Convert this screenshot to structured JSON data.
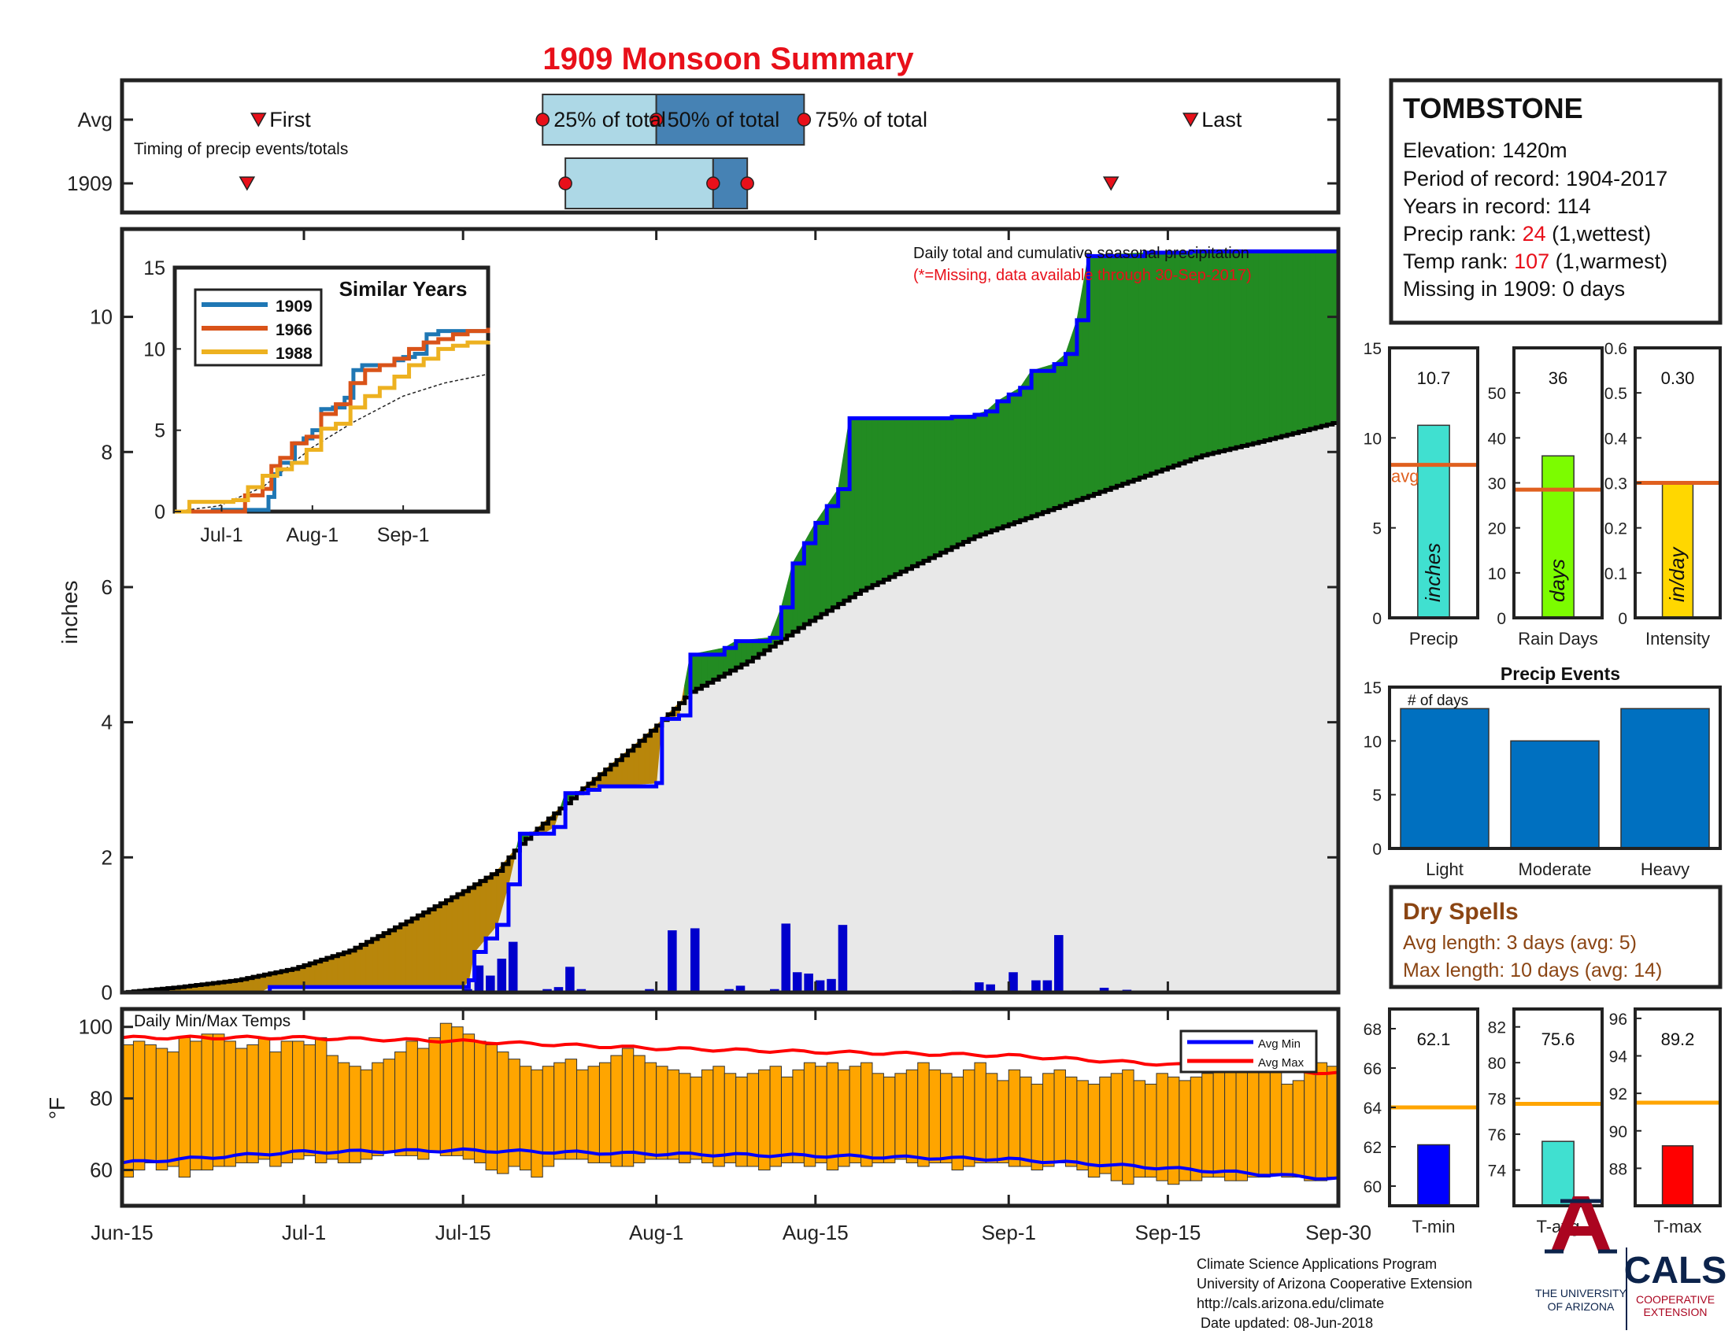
{
  "title": "1909 Monsoon Summary",
  "station": {
    "name": "TOMBSTONE",
    "lines": [
      {
        "label": "Elevation: ",
        "value": "1420m"
      },
      {
        "label": "Period of record: ",
        "value": "1904-2017"
      },
      {
        "label": "Years in record: ",
        "value": "114"
      },
      {
        "label": "Precip rank: ",
        "value": "24",
        "suffix": " (1,wettest)"
      },
      {
        "label": "Temp rank: ",
        "value": "107",
        "suffix": " (1,warmest)"
      },
      {
        "label": "Missing in 1909: ",
        "value": "0 days"
      }
    ]
  },
  "timing": {
    "rows": [
      "Avg",
      "1909"
    ],
    "subtitle": "Timing of precip events/totals",
    "labels": {
      "first": "First",
      "last": "Last",
      "p25": "25% of total",
      "p50": "50% of total",
      "p75": "75% of total"
    },
    "avg": {
      "first": 12,
      "p25": 37,
      "p50": 47,
      "p75": 60,
      "last": 94
    },
    "year": {
      "first": 11,
      "p25": 39,
      "p50": 52,
      "p75": 55,
      "last": 87
    }
  },
  "precip_note": {
    "line1": "Daily total and cumulative seasonal precipitation",
    "line2": "(*=Missing, data available through 30-Sep-2017)"
  },
  "date_ticks": [
    "Jun-15",
    "Jul-1",
    "Jul-15",
    "Aug-1",
    "Aug-15",
    "Sep-1",
    "Sep-15",
    "Sep-30"
  ],
  "date_tick_days": [
    0,
    16,
    30,
    47,
    61,
    78,
    92,
    107
  ],
  "colors": {
    "observed": "#0000ff",
    "average": "#000000",
    "above": "#228b22",
    "below": "#b8860b",
    "fill": "#e8e8e8",
    "bars": "#0000cc",
    "temps": "#ffa500",
    "avg_line": "#e0601f"
  },
  "chart_data": [
    {
      "type": "area",
      "name": "cumulative-precip",
      "ylabel": "inches",
      "ylim": [
        0,
        11.3
      ],
      "yticks": [
        0,
        2,
        4,
        6,
        8,
        10
      ],
      "xlim": [
        0,
        107
      ],
      "x_unit": "days since Jun-15",
      "observed_cumulative": [
        [
          0,
          0
        ],
        [
          12,
          0
        ],
        [
          13,
          0.08
        ],
        [
          30,
          0.08
        ],
        [
          30.5,
          0.18
        ],
        [
          31,
          0.6
        ],
        [
          32,
          0.8
        ],
        [
          33,
          1.0
        ],
        [
          34,
          1.6
        ],
        [
          35,
          2.35
        ],
        [
          37,
          2.35
        ],
        [
          38,
          2.45
        ],
        [
          39,
          2.95
        ],
        [
          40,
          2.95
        ],
        [
          41,
          3.0
        ],
        [
          42,
          3.05
        ],
        [
          47,
          3.1
        ],
        [
          47.5,
          4.05
        ],
        [
          49,
          4.1
        ],
        [
          50,
          5.0
        ],
        [
          53,
          5.1
        ],
        [
          54,
          5.2
        ],
        [
          57,
          5.25
        ],
        [
          58,
          5.7
        ],
        [
          59,
          6.35
        ],
        [
          60,
          6.65
        ],
        [
          61,
          6.95
        ],
        [
          62,
          7.2
        ],
        [
          63,
          7.45
        ],
        [
          64,
          8.5
        ],
        [
          70,
          8.5
        ],
        [
          73,
          8.52
        ],
        [
          75,
          8.55
        ],
        [
          76,
          8.6
        ],
        [
          77,
          8.75
        ],
        [
          78,
          8.85
        ],
        [
          79,
          8.95
        ],
        [
          80,
          9.2
        ],
        [
          82,
          9.3
        ],
        [
          83,
          9.45
        ],
        [
          84,
          9.95
        ],
        [
          85,
          10.9
        ],
        [
          90,
          10.95
        ],
        [
          94,
          10.97
        ],
        [
          107,
          10.97
        ]
      ],
      "average_cumulative": [
        [
          0,
          0
        ],
        [
          5,
          0.08
        ],
        [
          10,
          0.18
        ],
        [
          15,
          0.35
        ],
        [
          20,
          0.62
        ],
        [
          25,
          1.05
        ],
        [
          30,
          1.5
        ],
        [
          33,
          1.8
        ],
        [
          35,
          2.2
        ],
        [
          40,
          2.95
        ],
        [
          45,
          3.65
        ],
        [
          47,
          3.95
        ],
        [
          50,
          4.45
        ],
        [
          55,
          4.9
        ],
        [
          60,
          5.45
        ],
        [
          65,
          5.95
        ],
        [
          70,
          6.35
        ],
        [
          75,
          6.75
        ],
        [
          80,
          7.05
        ],
        [
          85,
          7.35
        ],
        [
          90,
          7.65
        ],
        [
          95,
          7.95
        ],
        [
          100,
          8.15
        ],
        [
          107,
          8.45
        ]
      ],
      "daily_bars": [
        [
          30,
          0.05
        ],
        [
          31,
          0.4
        ],
        [
          32,
          0.25
        ],
        [
          33,
          0.5
        ],
        [
          34,
          0.75
        ],
        [
          37,
          0.05
        ],
        [
          38,
          0.08
        ],
        [
          39,
          0.38
        ],
        [
          40,
          0.05
        ],
        [
          46,
          0.05
        ],
        [
          48,
          0.92
        ],
        [
          50,
          0.95
        ],
        [
          53,
          0.05
        ],
        [
          54,
          0.1
        ],
        [
          57,
          0.05
        ],
        [
          58,
          1.02
        ],
        [
          59,
          0.3
        ],
        [
          60,
          0.28
        ],
        [
          61,
          0.18
        ],
        [
          62,
          0.2
        ],
        [
          63,
          1.0
        ],
        [
          73,
          0.03
        ],
        [
          75,
          0.15
        ],
        [
          76,
          0.12
        ],
        [
          78,
          0.3
        ],
        [
          80,
          0.18
        ],
        [
          81,
          0.18
        ],
        [
          82,
          0.85
        ],
        [
          86,
          0.07
        ],
        [
          88,
          0.04
        ]
      ]
    },
    {
      "type": "line",
      "name": "similar-years",
      "title": "Similar Years",
      "ylim": [
        0,
        15
      ],
      "yticks": [
        0,
        5,
        10,
        15
      ],
      "xticks": [
        {
          "label": "Jul-1",
          "x": 16
        },
        {
          "label": "Aug-1",
          "x": 47
        },
        {
          "label": "Sep-1",
          "x": 78
        }
      ],
      "xlim": [
        0,
        107
      ],
      "series": [
        {
          "name": "1909",
          "color": "#1f77b4",
          "values": [
            [
              0,
              0
            ],
            [
              12,
              0
            ],
            [
              13,
              0.1
            ],
            [
              30,
              0.1
            ],
            [
              32,
              0.9
            ],
            [
              34,
              2.3
            ],
            [
              36,
              3.0
            ],
            [
              39,
              3.0
            ],
            [
              41,
              4.2
            ],
            [
              44,
              4.5
            ],
            [
              47,
              5.0
            ],
            [
              50,
              6.3
            ],
            [
              54,
              6.4
            ],
            [
              58,
              7.0
            ],
            [
              61,
              8.7
            ],
            [
              64,
              9.0
            ],
            [
              70,
              9.0
            ],
            [
              75,
              9.3
            ],
            [
              78,
              9.5
            ],
            [
              82,
              9.7
            ],
            [
              86,
              10.9
            ],
            [
              90,
              11.1
            ],
            [
              107,
              11.2
            ]
          ]
        },
        {
          "name": "1966",
          "color": "#d95319",
          "values": [
            [
              0,
              0
            ],
            [
              22,
              0
            ],
            [
              24,
              1.0
            ],
            [
              30,
              1.4
            ],
            [
              33,
              2.8
            ],
            [
              36,
              3.3
            ],
            [
              40,
              4.2
            ],
            [
              45,
              4.6
            ],
            [
              50,
              6.0
            ],
            [
              55,
              6.6
            ],
            [
              60,
              7.9
            ],
            [
              65,
              8.7
            ],
            [
              70,
              9.0
            ],
            [
              75,
              9.4
            ],
            [
              80,
              10.0
            ],
            [
              85,
              10.4
            ],
            [
              90,
              10.6
            ],
            [
              95,
              10.9
            ],
            [
              100,
              11.1
            ],
            [
              107,
              11.3
            ]
          ]
        },
        {
          "name": "1988",
          "color": "#edb120",
          "values": [
            [
              0,
              0
            ],
            [
              5,
              0.6
            ],
            [
              10,
              0.6
            ],
            [
              20,
              0.7
            ],
            [
              25,
              1.5
            ],
            [
              30,
              2.2
            ],
            [
              35,
              2.6
            ],
            [
              40,
              3.0
            ],
            [
              45,
              3.8
            ],
            [
              50,
              5.1
            ],
            [
              55,
              5.4
            ],
            [
              60,
              6.4
            ],
            [
              65,
              7.1
            ],
            [
              70,
              7.6
            ],
            [
              75,
              8.3
            ],
            [
              80,
              9.0
            ],
            [
              85,
              9.4
            ],
            [
              90,
              10.0
            ],
            [
              95,
              10.2
            ],
            [
              100,
              10.4
            ],
            [
              107,
              10.5
            ]
          ]
        }
      ],
      "average_line": [
        [
          0,
          0
        ],
        [
          15,
          0.35
        ],
        [
          30,
          1.5
        ],
        [
          47,
          3.95
        ],
        [
          61,
          5.5
        ],
        [
          78,
          7.1
        ],
        [
          92,
          7.9
        ],
        [
          107,
          8.45
        ]
      ]
    },
    {
      "type": "bar",
      "name": "daily-temps",
      "title": "Daily Min/Max Temps",
      "ylabel": "°F",
      "ylim": [
        50,
        105
      ],
      "yticks": [
        60,
        80,
        100
      ],
      "legend": [
        "Avg Min",
        "Avg Max"
      ],
      "tmin": [
        58,
        60,
        62,
        60,
        61,
        58,
        60,
        60,
        61,
        61,
        62,
        62,
        63,
        61,
        62,
        63,
        64,
        62,
        63,
        62,
        62,
        63,
        64,
        65,
        64,
        64,
        63,
        65,
        64,
        64,
        63,
        62,
        60,
        59,
        61,
        60,
        58,
        61,
        63,
        63,
        63,
        62,
        62,
        61,
        61,
        62,
        63,
        63,
        63,
        62,
        63,
        62,
        61,
        62,
        61,
        61,
        60,
        61,
        62,
        62,
        61,
        62,
        60,
        61,
        62,
        61,
        62,
        62,
        63,
        62,
        61,
        62,
        62,
        60,
        61,
        62,
        62,
        62,
        61,
        61,
        60,
        61,
        62,
        61,
        60,
        58,
        59,
        57,
        56,
        58,
        58,
        57,
        56,
        57,
        57,
        58,
        58,
        57,
        57,
        58,
        58,
        59,
        58,
        58,
        57,
        57,
        58
      ],
      "tmax": [
        95,
        96,
        95,
        94,
        93,
        97,
        96,
        98,
        98,
        96,
        94,
        95,
        97,
        93,
        96,
        96,
        95,
        97,
        92,
        90,
        89,
        88,
        90,
        91,
        93,
        96,
        94,
        97,
        101,
        100,
        98,
        96,
        95,
        93,
        91,
        89,
        88,
        89,
        90,
        91,
        88,
        89,
        90,
        92,
        94,
        92,
        90,
        89,
        88,
        87,
        86,
        88,
        89,
        87,
        86,
        87,
        88,
        89,
        86,
        88,
        90,
        89,
        90,
        88,
        89,
        90,
        87,
        86,
        87,
        88,
        90,
        88,
        87,
        86,
        88,
        90,
        87,
        85,
        88,
        86,
        84,
        87,
        88,
        86,
        85,
        84,
        86,
        87,
        88,
        85,
        84,
        87,
        86,
        85,
        86,
        87,
        88,
        90,
        89,
        90,
        88,
        89,
        84,
        85,
        88,
        90,
        89
      ],
      "avg_min": [
        [
          0,
          62
        ],
        [
          15,
          65
        ],
        [
          30,
          65.5
        ],
        [
          47,
          64.5
        ],
        [
          61,
          64
        ],
        [
          78,
          63
        ],
        [
          92,
          60.5
        ],
        [
          107,
          57.5
        ]
      ],
      "avg_max": [
        [
          0,
          97
        ],
        [
          15,
          97
        ],
        [
          30,
          96
        ],
        [
          47,
          94
        ],
        [
          61,
          93
        ],
        [
          78,
          92
        ],
        [
          92,
          89.5
        ],
        [
          107,
          87
        ]
      ]
    },
    {
      "type": "bar",
      "name": "summary-bars",
      "panels": [
        {
          "name": "Precip",
          "value": 10.7,
          "value_label": "10.7",
          "avg": 8.5,
          "unit": "inches",
          "ylim": [
            0,
            15
          ],
          "yticks": [
            0,
            5,
            10,
            15
          ],
          "color": "#40e0d0",
          "avg_label": "avg"
        },
        {
          "name": "Rain Days",
          "value": 36,
          "value_label": "36",
          "avg": 28.5,
          "unit": "days",
          "ylim": [
            0,
            60
          ],
          "yticks": [
            0,
            10,
            20,
            30,
            40,
            50
          ],
          "color": "#7cfc00"
        },
        {
          "name": "Intensity",
          "value": 0.3,
          "value_label": "0.30",
          "avg": 0.3,
          "unit": "in/day",
          "ylim": [
            0,
            0.6
          ],
          "yticks": [
            0,
            0.1,
            0.2,
            0.3,
            0.4,
            0.5,
            0.6
          ],
          "color": "#ffd700"
        }
      ]
    },
    {
      "type": "bar",
      "name": "precip-events",
      "title": "Precip Events",
      "ylabel": "# of days",
      "categories": [
        "Light",
        "Moderate",
        "Heavy"
      ],
      "values": [
        13,
        10,
        13
      ],
      "ylim": [
        0,
        15
      ],
      "yticks": [
        0,
        5,
        10,
        15
      ],
      "color": "#0070c0"
    },
    {
      "type": "bar",
      "name": "temp-summary",
      "panels": [
        {
          "name": "T-min",
          "value": 62.1,
          "value_label": "62.1",
          "avg": 64,
          "ylim": [
            59,
            69
          ],
          "yticks": [
            60,
            62,
            64,
            66,
            68
          ],
          "color": "#0000ff"
        },
        {
          "name": "T-avg",
          "value": 75.6,
          "value_label": "75.6",
          "avg": 77.7,
          "ylim": [
            72,
            83
          ],
          "yticks": [
            74,
            76,
            78,
            80,
            82
          ],
          "color": "#40e0d0"
        },
        {
          "name": "T-max",
          "value": 89.2,
          "value_label": "89.2",
          "avg": 91.5,
          "ylim": [
            86,
            96.5
          ],
          "yticks": [
            88,
            90,
            92,
            94,
            96
          ],
          "color": "#ff0000"
        }
      ]
    }
  ],
  "dry_spells": {
    "title": "Dry Spells",
    "avg_length": "Avg length: 3 days (avg: 5)",
    "max_length": "Max length: 10 days (avg: 14)"
  },
  "footer": [
    "Climate Science Applications Program",
    "University of Arizona Cooperative Extension",
    "http://cals.arizona.edu/climate",
    "Date updated: 08-Jun-2018"
  ],
  "logos": {
    "ua_lines": [
      "THE UNIVERSITY",
      "OF ARIZONA"
    ],
    "cals": "CALS",
    "cals_sub": [
      "COOPERATIVE",
      "EXTENSION"
    ]
  }
}
